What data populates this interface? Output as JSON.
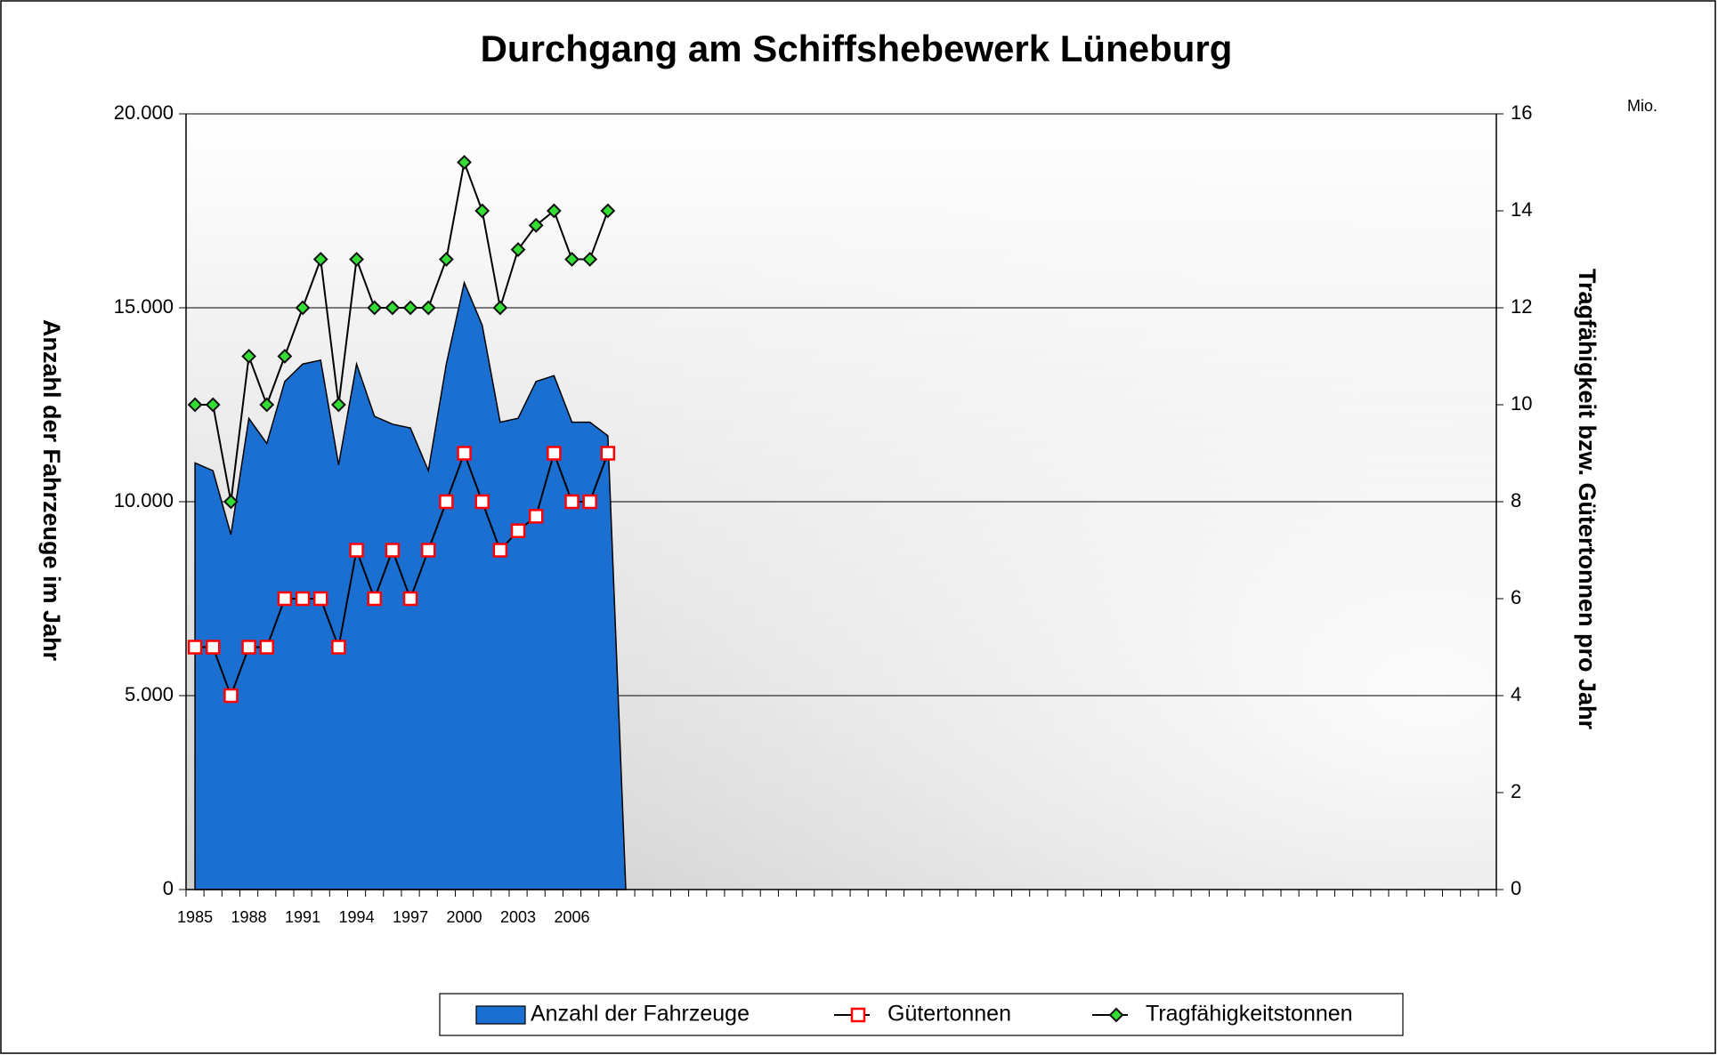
{
  "chart_data": {
    "type": "area-line",
    "title": "Durchgang am Schiffshebewerk Lüneburg",
    "y_label": "Anzahl der Fahrzeuge im Jahr",
    "y2_label": "Tragfähigkeit bzw. Gütertonnen pro Jahr",
    "y2_unit": "Mio.",
    "categories": [
      "1985",
      null,
      null,
      "1988",
      null,
      null,
      "1991",
      null,
      null,
      "1994",
      null,
      null,
      "1997",
      null,
      null,
      "2000",
      null,
      null,
      "2003",
      null,
      null,
      "2006",
      null,
      null,
      null,
      null,
      null,
      null,
      null,
      null,
      null,
      null,
      null,
      null,
      null,
      null,
      null,
      null,
      null,
      null,
      null,
      null,
      null,
      null,
      null,
      null,
      null,
      null,
      null,
      null,
      null,
      null,
      null,
      null,
      null,
      null,
      null,
      null,
      null,
      null,
      null,
      null,
      null,
      null,
      null,
      null,
      null,
      null,
      null,
      null,
      null,
      null,
      null
    ],
    "series": [
      {
        "name": "Anzahl der Fahrzeuge",
        "kind": "area",
        "color": "#1a6fd0",
        "axis": "y",
        "values": [
          11000,
          10800,
          9150,
          12150,
          11500,
          13100,
          13550,
          13650,
          10950,
          13550,
          12200,
          12000,
          11900,
          10800,
          13550,
          15650,
          14550,
          12050,
          12150,
          13100,
          13250,
          12050,
          12050,
          11700,
          0,
          null,
          null,
          null,
          null,
          null,
          null,
          null,
          null,
          null,
          null,
          null,
          null,
          null,
          null,
          null,
          null,
          null,
          null,
          null,
          null,
          null,
          null,
          null,
          null,
          null,
          null,
          null,
          null,
          null,
          null,
          null,
          null,
          null,
          null,
          null,
          null,
          null,
          null,
          null,
          null,
          null,
          null,
          null,
          null,
          null,
          null,
          null,
          null
        ]
      },
      {
        "name": "Gütertonnen",
        "kind": "line",
        "marker": "square",
        "color": "#000000",
        "marker_color": "#ff0000",
        "axis": "y2",
        "values": [
          5,
          5,
          4,
          5,
          5,
          6,
          6,
          6,
          5,
          7,
          6,
          7,
          6,
          7,
          8,
          9,
          8,
          7,
          7.4,
          7.7,
          9,
          8,
          8,
          9,
          null,
          null,
          null,
          null,
          null,
          null,
          null,
          null,
          null,
          null,
          null,
          null,
          null,
          null,
          null,
          null,
          null,
          null,
          null,
          null,
          null,
          null,
          null,
          null,
          null,
          null,
          null,
          null,
          null,
          null,
          null,
          null,
          null,
          null,
          null,
          null,
          null,
          null,
          null,
          null,
          null,
          null,
          null,
          null,
          null,
          null,
          null,
          null,
          null
        ]
      },
      {
        "name": "Tragfähigkeitstonnen",
        "kind": "line",
        "marker": "diamond",
        "color": "#000000",
        "marker_color": "#33dd33",
        "axis": "y2",
        "values": [
          10,
          10,
          8,
          11,
          10,
          11,
          12,
          13,
          10,
          13,
          12,
          12,
          12,
          12,
          13,
          15,
          14,
          12,
          13.2,
          13.7,
          14,
          13,
          13,
          14,
          null,
          null,
          null,
          null,
          null,
          null,
          null,
          null,
          null,
          null,
          null,
          null,
          null,
          null,
          null,
          null,
          null,
          null,
          null,
          null,
          null,
          null,
          null,
          null,
          null,
          null,
          null,
          null,
          null,
          null,
          null,
          null,
          null,
          null,
          null,
          null,
          null,
          null,
          null,
          null,
          null,
          null,
          null,
          null,
          null,
          null,
          null,
          null,
          null
        ]
      }
    ],
    "ylim": [
      0,
      20000
    ],
    "yticks": [
      0,
      {
        "value": 5000,
        "label": "5.000"
      },
      {
        "value": 10000,
        "label": "10.000"
      },
      {
        "value": 15000,
        "label": "15.000"
      },
      {
        "value": 20000,
        "label": "20.000"
      }
    ],
    "y2lim": [
      0,
      16
    ],
    "y2ticks": [
      0,
      2,
      4,
      6,
      8,
      10,
      12,
      14,
      16
    ],
    "grid": true,
    "legend": "bottom"
  }
}
